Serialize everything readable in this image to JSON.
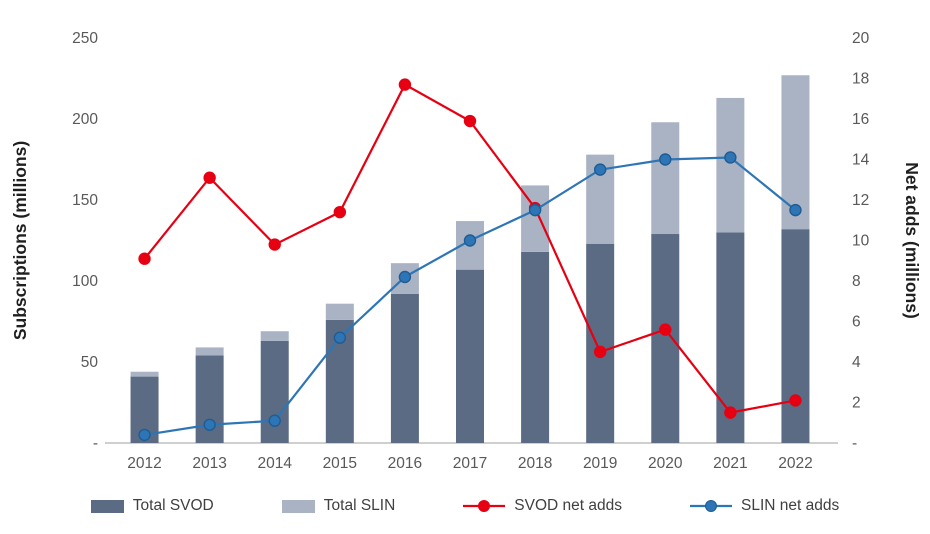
{
  "chart_data": {
    "type": "combo",
    "categories": [
      "2012",
      "2013",
      "2014",
      "2015",
      "2016",
      "2017",
      "2018",
      "2019",
      "2020",
      "2021",
      "2022"
    ],
    "series": [
      {
        "name": "Total SVOD",
        "type": "bar",
        "stack": "subscriptions",
        "axis": "left",
        "color": "#5b6b84",
        "values": [
          41,
          54,
          63,
          76,
          92,
          107,
          118,
          123,
          129,
          130,
          132
        ]
      },
      {
        "name": "Total SLIN",
        "type": "bar",
        "stack": "subscriptions",
        "axis": "left",
        "color": "#a9b3c4",
        "values": [
          3,
          5,
          6,
          10,
          19,
          30,
          41,
          55,
          69,
          83,
          95
        ]
      },
      {
        "name": "SVOD net adds",
        "type": "line",
        "axis": "right",
        "color": "#e60012",
        "marker_stroke": "#e60012",
        "values": [
          9.1,
          13.1,
          9.8,
          11.4,
          17.7,
          15.9,
          11.6,
          4.5,
          5.6,
          1.5,
          2.1
        ]
      },
      {
        "name": "SLIN net adds",
        "type": "line",
        "axis": "right",
        "color": "#2e75b6",
        "marker_stroke": "#1f5c94",
        "values": [
          0.4,
          0.9,
          1.1,
          5.2,
          8.2,
          10.0,
          11.5,
          13.5,
          14.0,
          14.1,
          11.5
        ]
      }
    ],
    "left_axis": {
      "title": "Subscriptions (millions)",
      "min": 0,
      "max": 250,
      "tick_step": 50,
      "zero_label": "-"
    },
    "right_axis": {
      "title": "Net adds (millions)",
      "min": 0,
      "max": 20,
      "tick_step": 2,
      "zero_label": "-"
    },
    "legend_position": "bottom",
    "grid": false
  }
}
